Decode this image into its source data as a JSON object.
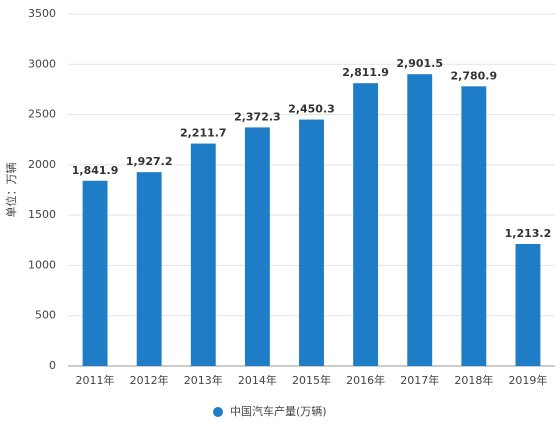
{
  "chart_data": {
    "type": "bar",
    "y_label": "单位：万辆",
    "categories": [
      "2011年",
      "2012年",
      "2013年",
      "2014年",
      "2015年",
      "2016年",
      "2017年",
      "2018年",
      "2019年"
    ],
    "series": [
      {
        "name": "中国汽车产量(万辆)",
        "color": "#1f7cc7",
        "values": [
          1841.9,
          1927.2,
          2211.7,
          2372.3,
          2450.3,
          2811.9,
          2901.5,
          2780.9,
          1213.2
        ],
        "value_labels": [
          "1,841.9",
          "1,927.2",
          "2,211.7",
          "2,372.3",
          "2,450.3",
          "2,811.9",
          "2,901.5",
          "2,780.9",
          "1,213.2"
        ]
      }
    ],
    "ylim": [
      0,
      3500
    ],
    "yticks": [
      0,
      500,
      1000,
      1500,
      2000,
      2500,
      3000,
      3500
    ],
    "grid": true,
    "legend": "bottom"
  }
}
